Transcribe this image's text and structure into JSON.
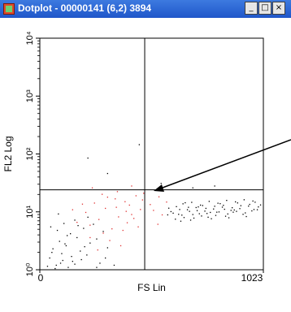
{
  "window": {
    "title": "Dotplot - 00000141 (6,2) 3894",
    "icon": "dotplot-app-icon",
    "buttons": [
      {
        "name": "minimize",
        "glyph": "_"
      },
      {
        "name": "maximize",
        "glyph": "□"
      },
      {
        "name": "close",
        "glyph": "×"
      }
    ]
  },
  "chart_data": {
    "type": "scatter",
    "xlabel": "FS Lin",
    "ylabel": "FL2 Log",
    "x_scale": "linear",
    "y_scale": "log",
    "xlim": [
      0,
      1023
    ],
    "ylim": [
      1,
      10000
    ],
    "x_tick_labels": [
      "0",
      "1023"
    ],
    "y_tick_labels": [
      "10⁰",
      "10¹",
      "10²",
      "10³",
      "10⁴"
    ],
    "quadrant_gates": {
      "x": 480,
      "y": 24
    },
    "annotation": "arrow",
    "colors": {
      "black_points": "#000000",
      "red_points": "#e03030"
    },
    "series": [
      {
        "color": "#000000",
        "points": [
          [
            610,
            9.5
          ],
          [
            640,
            11
          ],
          [
            660,
            8
          ],
          [
            680,
            12
          ],
          [
            700,
            9
          ],
          [
            720,
            10.5
          ],
          [
            740,
            8.5
          ],
          [
            760,
            11.5
          ],
          [
            780,
            9.8
          ],
          [
            800,
            12.5
          ],
          [
            820,
            10
          ],
          [
            840,
            13
          ],
          [
            860,
            9.2
          ],
          [
            880,
            11.8
          ],
          [
            900,
            10.2
          ],
          [
            920,
            12.8
          ],
          [
            940,
            9.6
          ],
          [
            960,
            13.5
          ],
          [
            980,
            11
          ],
          [
            1000,
            12.2
          ],
          [
            620,
            7.5
          ],
          [
            650,
            8.8
          ],
          [
            690,
            7.2
          ],
          [
            730,
            9.3
          ],
          [
            770,
            8.1
          ],
          [
            810,
            9.9
          ],
          [
            850,
            8.4
          ],
          [
            890,
            10.8
          ],
          [
            930,
            9.1
          ],
          [
            970,
            10.4
          ],
          [
            625,
            12.3
          ],
          [
            655,
            13.8
          ],
          [
            695,
            14.6
          ],
          [
            735,
            13.1
          ],
          [
            775,
            15.2
          ],
          [
            815,
            14.1
          ],
          [
            855,
            15.8
          ],
          [
            895,
            14.9
          ],
          [
            935,
            16.2
          ],
          [
            975,
            15.4
          ],
          [
            600,
            10.1
          ],
          [
            635,
            9.1
          ],
          [
            675,
            10.9
          ],
          [
            715,
            11.9
          ],
          [
            755,
            10.3
          ],
          [
            795,
            11.2
          ],
          [
            835,
            12.1
          ],
          [
            875,
            10.6
          ],
          [
            915,
            11.4
          ],
          [
            955,
            12.6
          ],
          [
            995,
            10.9
          ],
          [
            1010,
            13.2
          ],
          [
            585,
            8.9
          ],
          [
            590,
            11.6
          ],
          [
            645,
            6.9
          ],
          [
            705,
            7.8
          ],
          [
            745,
            12.9
          ],
          [
            785,
            7.6
          ],
          [
            825,
            13.9
          ],
          [
            865,
            7.9
          ],
          [
            905,
            14.3
          ],
          [
            945,
            8.3
          ],
          [
            985,
            14.7
          ],
          [
            665,
            14.4
          ],
          [
            685,
            10.2
          ],
          [
            725,
            12.2
          ],
          [
            765,
            9.4
          ],
          [
            805,
            8.7
          ],
          [
            845,
            11.1
          ],
          [
            885,
            9.9
          ],
          [
            45,
            1.6
          ],
          [
            60,
            2.3
          ],
          [
            75,
            1.2
          ],
          [
            90,
            3.1
          ],
          [
            100,
            1.9
          ],
          [
            120,
            2.6
          ],
          [
            140,
            4.2
          ],
          [
            150,
            1.4
          ],
          [
            170,
            3.6
          ],
          [
            185,
            2.1
          ],
          [
            200,
            5.2
          ],
          [
            215,
            1.8
          ],
          [
            230,
            2.9
          ],
          [
            245,
            6.1
          ],
          [
            260,
            3.4
          ],
          [
            275,
            1.3
          ],
          [
            290,
            4.6
          ],
          [
            310,
            2.4
          ],
          [
            50,
            5.5
          ],
          [
            80,
            4.8
          ],
          [
            110,
            6.3
          ],
          [
            130,
            1.1
          ],
          [
            160,
            7.2
          ],
          [
            190,
            1.5
          ],
          [
            220,
            8.1
          ],
          [
            70,
            1.05
          ],
          [
            95,
            1.3
          ],
          [
            115,
            2.8
          ],
          [
            145,
            1.7
          ],
          [
            175,
            5.8
          ],
          [
            340,
            1.2
          ],
          [
            260,
            1.1
          ],
          [
            300,
            1.6
          ],
          [
            160,
            1.25
          ],
          [
            85,
            9.2
          ],
          [
            205,
            2.5
          ],
          [
            125,
            3.9
          ],
          [
            55,
            2.0
          ],
          [
            35,
            1.15
          ],
          [
            105,
            1.45
          ],
          [
            455,
            145
          ],
          [
            800,
            28
          ],
          [
            700,
            26
          ],
          [
            220,
            85
          ],
          [
            310,
            46
          ],
          [
            555,
            31
          ]
        ]
      },
      {
        "color": "#e03030",
        "points": [
          [
            240,
            26
          ],
          [
            420,
            28
          ],
          [
            310,
            18
          ],
          [
            350,
            12
          ],
          [
            390,
            15
          ],
          [
            420,
            9
          ],
          [
            440,
            19
          ],
          [
            460,
            11
          ],
          [
            475,
            21
          ],
          [
            400,
            6.5
          ],
          [
            360,
            8.2
          ],
          [
            330,
            5.1
          ],
          [
            300,
            11.5
          ],
          [
            270,
            7.4
          ],
          [
            250,
            14.2
          ],
          [
            290,
            4.3
          ],
          [
            320,
            3.2
          ],
          [
            370,
            2.6
          ],
          [
            345,
            16.8
          ],
          [
            410,
            13.1
          ],
          [
            380,
            4.8
          ],
          [
            210,
            9.8
          ],
          [
            230,
            5.9
          ],
          [
            195,
            13.6
          ],
          [
            430,
            7.7
          ],
          [
            355,
            22.4
          ],
          [
            285,
            20.1
          ],
          [
            470,
            16.1
          ],
          [
            505,
            13.4
          ],
          [
            520,
            10.6
          ],
          [
            545,
            18.2
          ],
          [
            560,
            8.9
          ],
          [
            580,
            14.8
          ],
          [
            540,
            6.1
          ],
          [
            265,
            2.2
          ],
          [
            230,
            3.6
          ],
          [
            170,
            6.6
          ],
          [
            150,
            10.9
          ],
          [
            450,
            5.5
          ],
          [
            395,
            10.2
          ]
        ]
      }
    ]
  }
}
